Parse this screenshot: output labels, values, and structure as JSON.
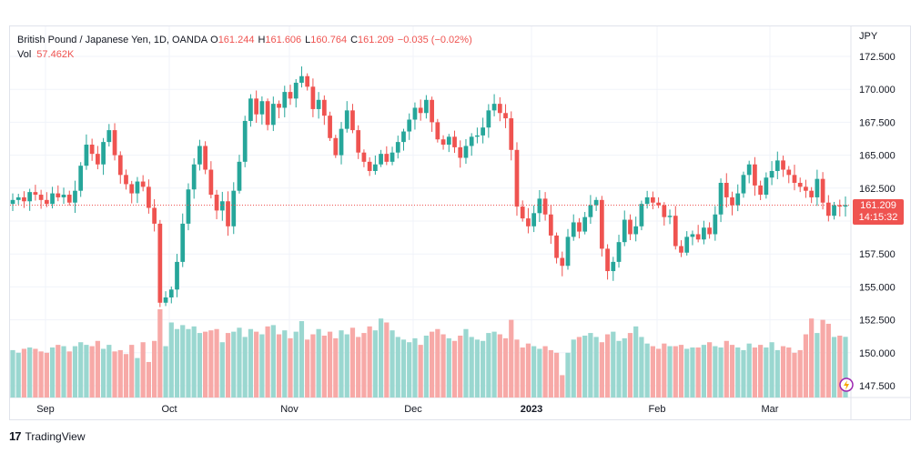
{
  "header": {
    "symbol": "British Pound / Japanese Yen, 1D, OANDA",
    "o_label": "O",
    "o_value": "161.244",
    "h_label": "H",
    "h_value": "161.606",
    "l_label": "L",
    "l_value": "160.764",
    "c_label": "C",
    "c_value": "161.209",
    "change": "−0.035 (−0.02%)",
    "vol_label": "Vol",
    "vol_value": "57.462K"
  },
  "price_axis": {
    "currency": "JPY",
    "last_price": "161.209",
    "countdown": "14:15:32"
  },
  "brand": {
    "name": "TradingView"
  },
  "colors": {
    "up": "#26a69a",
    "down": "#ef5350",
    "vol_up": "#9ad7d0",
    "vol_down": "#f7a9a7",
    "grid": "#f0f3fa"
  },
  "chart_data": {
    "type": "candlestick",
    "y_ticks": [
      "172.500",
      "170.000",
      "167.500",
      "165.000",
      "162.500",
      "160.000",
      "157.500",
      "155.000",
      "152.500",
      "150.000",
      "147.500"
    ],
    "ylim": [
      147.5,
      172.5
    ],
    "x_tick_labels": [
      "Sep",
      "Oct",
      "Nov",
      "Dec",
      "2023",
      "Feb",
      "Mar"
    ],
    "last_close": 161.209,
    "closes": [
      161.6,
      161.8,
      161.5,
      162.2,
      162.0,
      161.6,
      161.3,
      162.1,
      161.8,
      162.0,
      161.4,
      162.3,
      164.2,
      165.8,
      165.1,
      164.3,
      166.0,
      166.9,
      165.0,
      163.5,
      162.8,
      162.1,
      163.0,
      162.6,
      161.0,
      159.8,
      153.8,
      154.2,
      154.8,
      156.9,
      159.8,
      162.4,
      164.3,
      165.7,
      163.9,
      162.0,
      160.8,
      161.5,
      159.6,
      162.3,
      164.5,
      167.6,
      169.3,
      168.1,
      169.1,
      167.3,
      168.9,
      168.6,
      169.8,
      169.3,
      170.5,
      171.0,
      170.2,
      168.5,
      169.2,
      168.0,
      166.3,
      165.0,
      167.0,
      168.4,
      166.9,
      165.2,
      164.5,
      163.8,
      164.3,
      165.1,
      164.5,
      165.2,
      166.0,
      166.8,
      167.7,
      168.6,
      168.2,
      169.2,
      167.5,
      166.2,
      165.8,
      166.4,
      165.6,
      164.8,
      165.7,
      166.4,
      166.5,
      167.1,
      168.4,
      168.9,
      168.2,
      167.8,
      165.4,
      161.1,
      160.2,
      159.6,
      160.6,
      161.7,
      160.5,
      158.9,
      157.2,
      156.6,
      158.8,
      159.9,
      159.2,
      160.3,
      161.2,
      161.6,
      157.9,
      156.2,
      156.9,
      158.4,
      160.1,
      159.0,
      159.6,
      161.3,
      161.8,
      161.4,
      161.2,
      160.3,
      160.4,
      158.1,
      157.6,
      158.8,
      159.0,
      158.6,
      159.5,
      159.0,
      160.5,
      162.9,
      161.8,
      161.2,
      162.1,
      163.5,
      164.3,
      162.7,
      162.0,
      163.3,
      163.8,
      164.6,
      163.9,
      163.5,
      162.9,
      162.6,
      162.3,
      161.8,
      163.2,
      161.4,
      160.4,
      161.2,
      161.1,
      161.209
    ],
    "volume_highs": [
      150.2,
      150.0,
      150.3,
      150.4,
      150.3,
      150.1,
      150.0,
      150.4,
      150.6,
      150.5,
      150.1,
      150.5,
      150.8,
      150.6,
      150.5,
      150.9,
      150.3,
      150.6,
      150.1,
      150.2,
      149.9,
      150.6,
      149.6,
      150.8,
      149.3,
      150.9,
      153.3,
      150.5,
      152.3,
      151.8,
      152.1,
      151.8,
      152.0,
      151.5,
      151.6,
      151.7,
      151.8,
      150.8,
      151.5,
      151.6,
      151.9,
      151.2,
      151.8,
      151.6,
      151.4,
      152.0,
      152.1,
      151.4,
      151.7,
      151.1,
      151.6,
      152.4,
      151.0,
      151.4,
      151.8,
      151.3,
      151.6,
      151.1,
      151.7,
      151.4,
      151.9,
      151.2,
      151.5,
      152.0,
      151.7,
      152.6,
      152.3,
      151.7,
      151.2,
      151.0,
      150.8,
      151.1,
      150.6,
      151.3,
      151.6,
      151.8,
      151.4,
      151.1,
      150.9,
      151.3,
      151.8,
      151.2,
      151.0,
      150.9,
      151.5,
      151.6,
      151.4,
      151.1,
      152.5,
      151.0,
      150.4,
      150.7,
      150.5,
      150.3,
      150.5,
      150.2,
      150.0,
      148.3,
      150.0,
      151.0,
      151.2,
      151.3,
      151.5,
      151.2,
      150.8,
      151.4,
      151.6,
      150.9,
      151.1,
      151.5,
      152.0,
      151.2,
      150.7,
      150.5,
      150.3,
      150.7,
      150.5,
      150.5,
      150.6,
      150.3,
      150.4,
      150.4,
      150.6,
      150.8,
      150.5,
      150.4,
      150.9,
      150.6,
      150.4,
      150.2,
      150.7,
      150.4,
      150.6,
      150.4,
      150.8,
      150.2,
      150.5,
      150.4,
      150.0,
      150.2,
      151.4,
      152.6,
      151.5,
      152.5,
      152.2,
      151.2,
      151.3,
      151.209
    ]
  }
}
